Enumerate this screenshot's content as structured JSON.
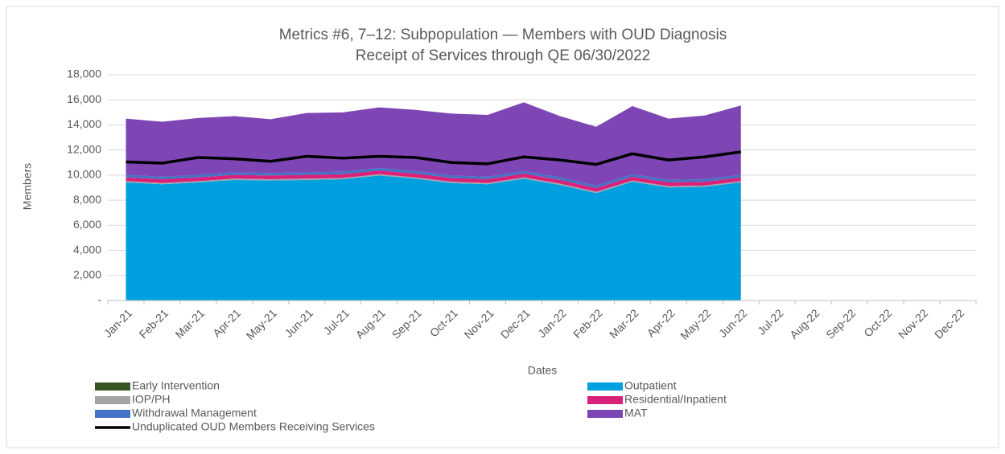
{
  "chart_data": {
    "type": "stacked_area_line",
    "title": "Metrics #6, 7–12: Subpopulation — Members with OUD Diagnosis",
    "subtitle": "Receipt of Services through QE 06/30/2022",
    "x_label": "Dates",
    "y_label": "Members",
    "categories": [
      "Jan-21",
      "Feb-21",
      "Mar-21",
      "Apr-21",
      "May-21",
      "Jun-21",
      "Jul-21",
      "Aug-21",
      "Sep-21",
      "Oct-21",
      "Nov-21",
      "Dec-21",
      "Jan-22",
      "Feb-22",
      "Mar-22",
      "Apr-22",
      "May-22",
      "Jun-22",
      "Jul-22",
      "Aug-22",
      "Sep-22",
      "Oct-22",
      "Nov-22",
      "Dec-22"
    ],
    "ylim": [
      0,
      18000
    ],
    "yticks": [
      {
        "value": 0,
        "label": "-"
      },
      {
        "value": 2000,
        "label": "2,000"
      },
      {
        "value": 4000,
        "label": "4,000"
      },
      {
        "value": 6000,
        "label": "6,000"
      },
      {
        "value": 8000,
        "label": "8,000"
      },
      {
        "value": 10000,
        "label": "10,000"
      },
      {
        "value": 12000,
        "label": "12,000"
      },
      {
        "value": 14000,
        "label": "14,000"
      },
      {
        "value": 16000,
        "label": "16,000"
      },
      {
        "value": 18000,
        "label": "18,000"
      }
    ],
    "grid": true,
    "series": [
      {
        "name": "Early Intervention",
        "color": "#375623",
        "kind": "area",
        "values": [
          20,
          20,
          20,
          20,
          20,
          20,
          20,
          20,
          20,
          20,
          20,
          20,
          20,
          20,
          20,
          20,
          20,
          20,
          null,
          null,
          null,
          null,
          null,
          null
        ]
      },
      {
        "name": "Outpatient",
        "color": "#00a0e0",
        "kind": "area",
        "values": [
          9400,
          9250,
          9400,
          9600,
          9550,
          9600,
          9650,
          9950,
          9700,
          9350,
          9250,
          9700,
          9200,
          8550,
          9450,
          9000,
          9050,
          9400,
          null,
          null,
          null,
          null,
          null,
          null
        ]
      },
      {
        "name": "IOP/PH",
        "color": "#a5a5a5",
        "kind": "area",
        "values": [
          100,
          100,
          100,
          100,
          100,
          100,
          100,
          100,
          100,
          100,
          100,
          100,
          100,
          100,
          100,
          100,
          100,
          100,
          null,
          null,
          null,
          null,
          null,
          null
        ]
      },
      {
        "name": "Residential/Inpatient",
        "color": "#d9217b",
        "kind": "area",
        "values": [
          300,
          300,
          300,
          300,
          300,
          300,
          300,
          300,
          300,
          300,
          300,
          300,
          300,
          300,
          300,
          300,
          300,
          300,
          null,
          null,
          null,
          null,
          null,
          null
        ]
      },
      {
        "name": "Withdrawal Management",
        "color": "#4472c4",
        "kind": "area",
        "values": [
          200,
          200,
          200,
          200,
          200,
          200,
          200,
          200,
          200,
          200,
          200,
          200,
          200,
          200,
          200,
          200,
          200,
          200,
          null,
          null,
          null,
          null,
          null,
          null
        ]
      },
      {
        "name": "MAT",
        "color": "#7e45b4",
        "kind": "area",
        "values": [
          4480,
          4380,
          4530,
          4480,
          4280,
          4730,
          4730,
          4830,
          4880,
          4930,
          4930,
          5480,
          4880,
          4680,
          5430,
          4880,
          5080,
          5530,
          null,
          null,
          null,
          null,
          null,
          null
        ]
      },
      {
        "name": "Unduplicated OUD Members Receiving Services",
        "color": "#000000",
        "kind": "line",
        "values": [
          11050,
          10950,
          11400,
          11300,
          11100,
          11500,
          11350,
          11500,
          11400,
          11000,
          10900,
          11450,
          11200,
          10850,
          11700,
          11200,
          11450,
          11850,
          null,
          null,
          null,
          null,
          null,
          null
        ]
      }
    ]
  }
}
